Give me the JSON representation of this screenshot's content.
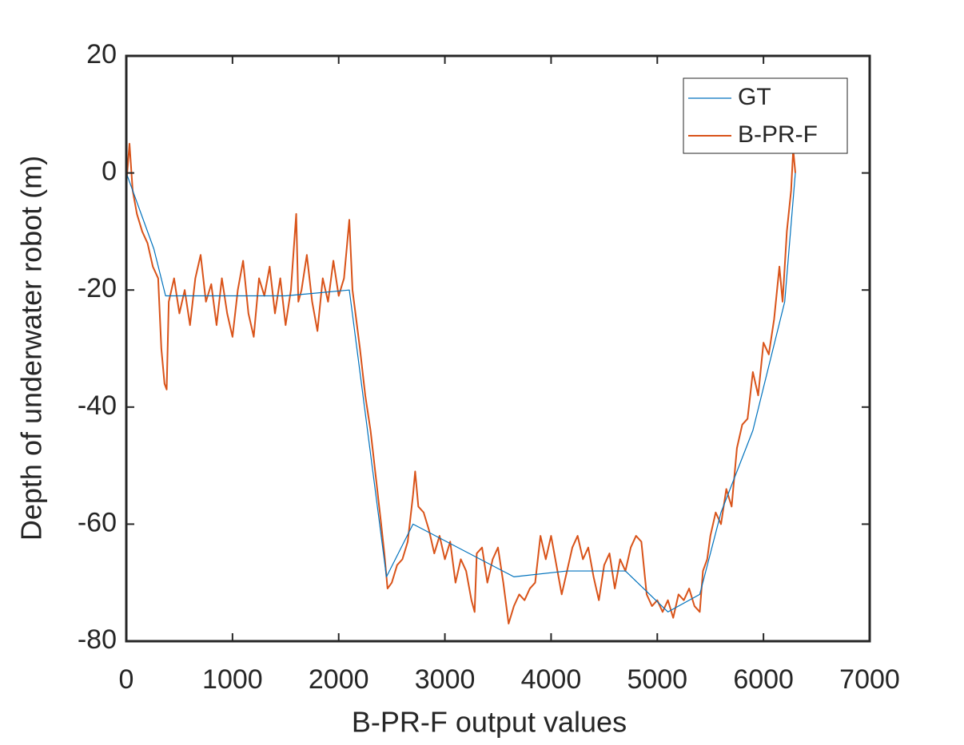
{
  "chart_data": {
    "type": "line",
    "xlabel": "B-PR-F output values",
    "ylabel": "Depth of underwater robot (m)",
    "xlim": [
      0,
      7000
    ],
    "xticks": [
      0,
      1000,
      2000,
      3000,
      4000,
      5000,
      6000,
      7000
    ],
    "ylim": [
      -80,
      20
    ],
    "yticks": [
      -80,
      -60,
      -40,
      -20,
      0,
      20
    ],
    "legend": "upper right",
    "series": [
      {
        "name": "GT",
        "color": "#0072bd",
        "x": [
          0,
          260,
          370,
          1000,
          1500,
          2100,
          2450,
          2700,
          3650,
          4150,
          4700,
          5100,
          5400,
          5600,
          5900,
          6200,
          6300
        ],
        "values": [
          0,
          -13,
          -21,
          -21,
          -21,
          -20,
          -69,
          -60,
          -69,
          -68,
          -68,
          -75,
          -72,
          -58,
          -44,
          -22,
          0
        ]
      },
      {
        "name": "B-PR-F",
        "color": "#d95319",
        "x": [
          0,
          30,
          60,
          100,
          150,
          200,
          250,
          300,
          330,
          360,
          380,
          400,
          450,
          500,
          550,
          600,
          650,
          700,
          750,
          800,
          850,
          900,
          950,
          1000,
          1050,
          1100,
          1150,
          1200,
          1250,
          1300,
          1350,
          1400,
          1450,
          1500,
          1550,
          1600,
          1620,
          1650,
          1700,
          1750,
          1800,
          1850,
          1900,
          1950,
          2000,
          2050,
          2100,
          2130,
          2200,
          2250,
          2300,
          2350,
          2400,
          2430,
          2460,
          2500,
          2550,
          2600,
          2650,
          2700,
          2720,
          2750,
          2800,
          2850,
          2900,
          2950,
          3000,
          3050,
          3100,
          3150,
          3200,
          3250,
          3280,
          3300,
          3350,
          3400,
          3450,
          3500,
          3550,
          3600,
          3650,
          3700,
          3750,
          3800,
          3850,
          3900,
          3950,
          4000,
          4050,
          4100,
          4150,
          4200,
          4250,
          4300,
          4350,
          4400,
          4450,
          4500,
          4550,
          4600,
          4650,
          4700,
          4750,
          4800,
          4850,
          4900,
          4950,
          5000,
          5050,
          5100,
          5150,
          5200,
          5250,
          5300,
          5350,
          5400,
          5430,
          5470,
          5500,
          5550,
          5600,
          5650,
          5700,
          5750,
          5800,
          5850,
          5900,
          5950,
          6000,
          6050,
          6100,
          6150,
          6180,
          6220,
          6260,
          6280,
          6300
        ],
        "values": [
          -2,
          5,
          -3,
          -7,
          -10,
          -12,
          -16,
          -18,
          -30,
          -36,
          -37,
          -22,
          -18,
          -24,
          -20,
          -26,
          -18,
          -14,
          -22,
          -19,
          -26,
          -18,
          -24,
          -28,
          -20,
          -15,
          -24,
          -28,
          -18,
          -21,
          -16,
          -24,
          -18,
          -26,
          -20,
          -7,
          -22,
          -20,
          -14,
          -22,
          -27,
          -18,
          -22,
          -15,
          -21,
          -18,
          -8,
          -20,
          -30,
          -38,
          -44,
          -52,
          -60,
          -65,
          -71,
          -70,
          -67,
          -66,
          -63,
          -55,
          -51,
          -57,
          -58,
          -61,
          -65,
          -62,
          -66,
          -63,
          -70,
          -66,
          -68,
          -73,
          -75,
          -65,
          -64,
          -70,
          -66,
          -64,
          -70,
          -77,
          -74,
          -72,
          -73,
          -71,
          -70,
          -62,
          -66,
          -62,
          -67,
          -72,
          -68,
          -64,
          -62,
          -66,
          -64,
          -69,
          -73,
          -67,
          -65,
          -71,
          -66,
          -68,
          -64,
          -62,
          -63,
          -72,
          -74,
          -73,
          -75,
          -73,
          -76,
          -72,
          -73,
          -71,
          -74,
          -75,
          -68,
          -66,
          -62,
          -58,
          -60,
          -54,
          -57,
          -47,
          -43,
          -42,
          -34,
          -38,
          -29,
          -31,
          -25,
          -16,
          -22,
          -10,
          -3,
          4,
          0
        ]
      }
    ]
  }
}
